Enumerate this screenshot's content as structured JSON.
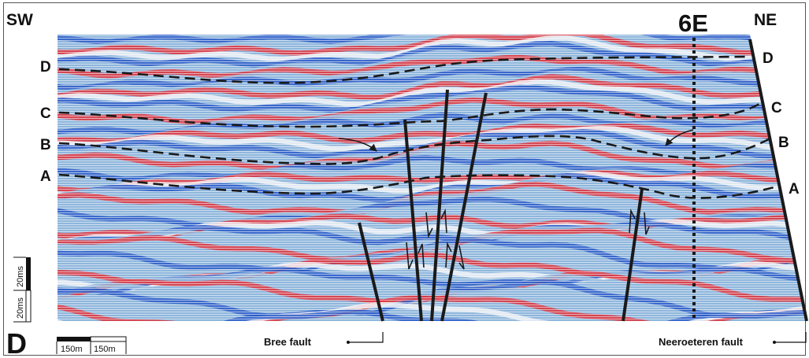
{
  "panel_label": "D",
  "direction": {
    "left": "SW",
    "right": "NE"
  },
  "well_label": "6E",
  "horizons": [
    {
      "name": "D",
      "left": "D",
      "right": "D"
    },
    {
      "name": "C",
      "left": "C",
      "right": "C"
    },
    {
      "name": "B",
      "left": "B",
      "right": "B"
    },
    {
      "name": "A",
      "left": "A",
      "right": "A"
    }
  ],
  "faults": {
    "bree": "Bree fault",
    "neeroeteren": "Neeroeteren fault"
  },
  "scale": {
    "horizontal": [
      "150m",
      "150m"
    ],
    "vertical": [
      "20ms",
      "20ms"
    ]
  },
  "colors": {
    "peak": "#e0343c",
    "trough": "#2a5cc8",
    "pale_blue": "#8fb6dc",
    "background": "#ffffff",
    "interpretation": "#1a1a1a"
  }
}
